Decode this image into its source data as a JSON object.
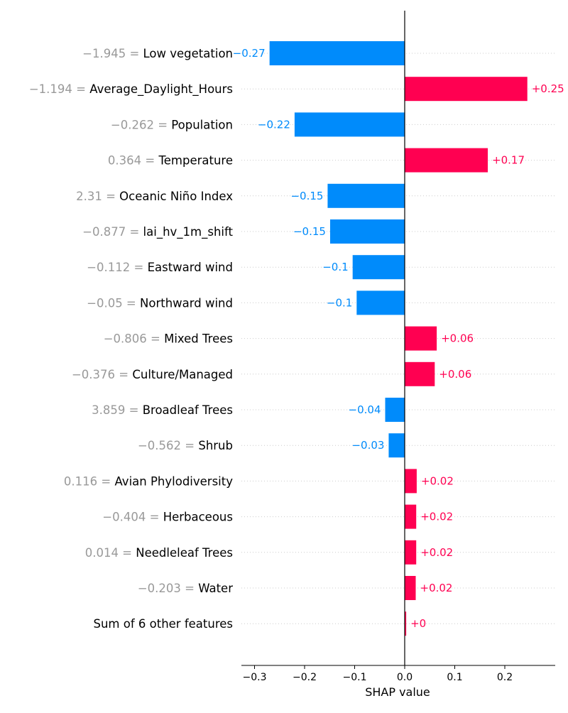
{
  "chart_data": {
    "type": "bar",
    "orientation": "horizontal",
    "xlabel": "SHAP value",
    "xlim": [
      -0.33,
      0.3
    ],
    "xticks": [
      -0.3,
      -0.2,
      -0.1,
      0.0,
      0.1,
      0.2
    ],
    "xtick_labels": [
      "−0.3",
      "−0.2",
      "−0.1",
      "0.0",
      "0.1",
      "0.2"
    ],
    "grid": "horizontal dotted row lines",
    "colors": {
      "positive": "#ff0051",
      "negative": "#008bfb",
      "feature_value": "#999999"
    },
    "features": [
      {
        "value_text": "−1.945 =",
        "name": "Low vegetation",
        "shap": -0.27,
        "label": "−0.27"
      },
      {
        "value_text": "−1.194 =",
        "name": "Average_Daylight_Hours",
        "shap": 0.245,
        "label": "+0.25"
      },
      {
        "value_text": "−0.262 =",
        "name": "Population",
        "shap": -0.22,
        "label": "−0.22"
      },
      {
        "value_text": "0.364 =",
        "name": "Temperature",
        "shap": 0.166,
        "label": "+0.17"
      },
      {
        "value_text": "2.31 =",
        "name": "Oceanic Niño Index",
        "shap": -0.154,
        "label": "−0.15"
      },
      {
        "value_text": "−0.877 =",
        "name": "lai_hv_1m_shift",
        "shap": -0.149,
        "label": "−0.15"
      },
      {
        "value_text": "−0.112 =",
        "name": "Eastward wind",
        "shap": -0.104,
        "label": "−0.1"
      },
      {
        "value_text": "−0.05 =",
        "name": "Northward wind",
        "shap": -0.096,
        "label": "−0.1"
      },
      {
        "value_text": "−0.806 =",
        "name": "Mixed Trees",
        "shap": 0.064,
        "label": "+0.06"
      },
      {
        "value_text": "−0.376 =",
        "name": "Culture/Managed",
        "shap": 0.06,
        "label": "+0.06"
      },
      {
        "value_text": "3.859 =",
        "name": "Broadleaf Trees",
        "shap": -0.039,
        "label": "−0.04"
      },
      {
        "value_text": "−0.562 =",
        "name": "Shrub",
        "shap": -0.032,
        "label": "−0.03"
      },
      {
        "value_text": "0.116 =",
        "name": "Avian Phylodiversity",
        "shap": 0.024,
        "label": "+0.02"
      },
      {
        "value_text": "−0.404 =",
        "name": "Herbaceous",
        "shap": 0.023,
        "label": "+0.02"
      },
      {
        "value_text": "0.014 =",
        "name": "Needleleaf Trees",
        "shap": 0.023,
        "label": "+0.02"
      },
      {
        "value_text": "−0.203 =",
        "name": "Water",
        "shap": 0.022,
        "label": "+0.02"
      },
      {
        "value_text": "",
        "name": "Sum of 6 other features",
        "shap": 0.003,
        "label": "+0"
      }
    ]
  }
}
